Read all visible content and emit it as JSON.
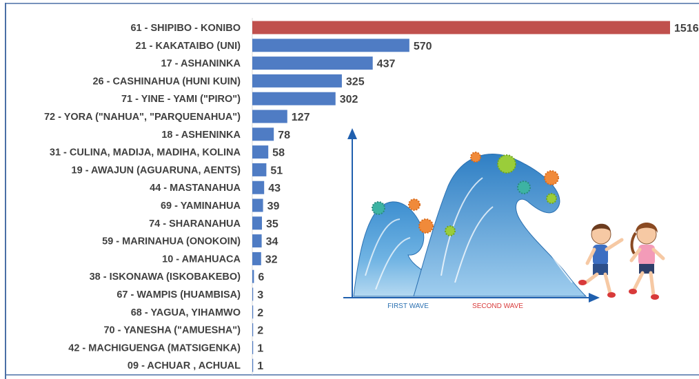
{
  "chart_data": {
    "type": "bar",
    "orientation": "horizontal",
    "categories": [
      "61 - SHIPIBO - KONIBO",
      "21 - KAKATAIBO (UNI)",
      "17 - ASHANINKA",
      "26 - CASHINAHUA (HUNI KUIN)",
      "71 - YINE - YAMI (\"PIRO\")",
      "72 - YORA (\"NAHUA\", \"PARQUENAHUA\")",
      "18 - ASHENINKA",
      "31 - CULINA, MADIJA, MADIHA, KOLINA",
      "19 - AWAJUN (AGUARUNA, AENTS)",
      "44 - MASTANAHUA",
      "69 - YAMINAHUA",
      "74 - SHARANAHUA",
      "59 - MARINAHUA (ONOKOIN)",
      "10 - AMAHUACA",
      "38 - ISKONAWA (ISKOBAKEBO)",
      "67 - WAMPIS (HUAMBISA)",
      "68 - YAGUA, YIHAMWO",
      "70 - YANESHA (\"AMUESHA\")",
      "42 - MACHIGUENGA (MATSIGENKA)",
      "09 - ACHUAR , ACHUAL"
    ],
    "values": [
      1516,
      570,
      437,
      325,
      302,
      127,
      78,
      58,
      51,
      43,
      39,
      35,
      34,
      32,
      6,
      3,
      2,
      2,
      1,
      1
    ],
    "value_labels": [
      "1516",
      "570",
      "437",
      "325",
      "302",
      "127",
      "78",
      "58",
      "51",
      "43",
      "39",
      "35",
      "34",
      "32",
      "6",
      "3",
      "2",
      "2",
      "1",
      "1"
    ],
    "highlight_index": 0,
    "xlim": [
      0,
      1516
    ],
    "grid": false,
    "legend": "none"
  },
  "colors": {
    "bar": "#4f7cc4",
    "highlight_bar": "#c0504d",
    "text": "#404040",
    "frame": "#4a6fa5"
  },
  "illustration": {
    "icon": "covid-wave-children-illustration",
    "x_axis_labels": [
      "FIRST WAVE",
      "SECOND WAVE"
    ]
  }
}
